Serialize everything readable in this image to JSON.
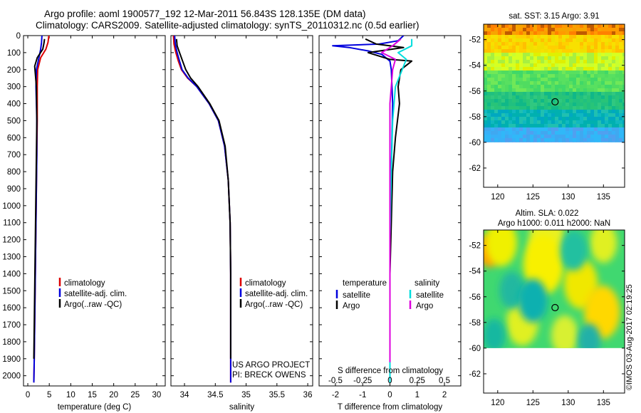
{
  "figure": {
    "title_line1": "Argo profile: aoml 1900577_192 12-Mar-2011 56.843S 128.135E (DM data)",
    "title_line2": "Climatology: CARS2009. Satellite-adjusted climatology: synTS_20110312.nc (0.5d earlier)",
    "credit": "©IMOS 03-Aug-2017 02:19:25"
  },
  "chart_data": [
    {
      "type": "line",
      "name": "temperature-profile",
      "xlabel": "temperature (deg C)",
      "ylabel": "",
      "xlim": [
        -1,
        32
      ],
      "ylim": [
        2060,
        0
      ],
      "xticks": [
        0,
        5,
        10,
        15,
        20,
        25,
        30
      ],
      "yticks": [
        0,
        100,
        200,
        300,
        400,
        500,
        600,
        700,
        800,
        900,
        1000,
        1100,
        1200,
        1300,
        1400,
        1500,
        1600,
        1700,
        1800,
        1900,
        2000
      ],
      "legend": {
        "placement": "lower-right",
        "entries": [
          "climatology",
          "satellite-adj. clim.",
          "Argo(..raw -QC)"
        ]
      },
      "series": [
        {
          "name": "climatology",
          "color": "#dd0000",
          "x": [
            4.9,
            4.7,
            4.2,
            3.0,
            2.3,
            2.2,
            2.2,
            2.1,
            2.0,
            1.9,
            1.8,
            1.7,
            1.6,
            1.5,
            1.4
          ],
          "y": [
            0,
            40,
            80,
            130,
            200,
            300,
            500,
            700,
            900,
            1100,
            1300,
            1500,
            1700,
            1900,
            2040
          ]
        },
        {
          "name": "satellite-adj. clim.",
          "color": "#0000dd",
          "x": [
            3.3,
            3.2,
            3.0,
            2.6,
            2.0,
            1.9,
            2.1,
            2.1,
            2.0,
            1.9,
            1.8,
            1.7,
            1.6,
            1.5,
            1.4
          ],
          "y": [
            0,
            40,
            80,
            130,
            200,
            300,
            500,
            700,
            900,
            1100,
            1300,
            1500,
            1700,
            1900,
            2040
          ]
        },
        {
          "name": "Argo(..raw -QC)",
          "color": "#000000",
          "x": [
            3.9,
            3.8,
            3.5,
            2.2,
            1.6,
            2.0,
            2.1,
            2.0,
            1.9,
            1.8,
            1.7,
            1.6,
            1.5,
            1.4
          ],
          "y": [
            20,
            40,
            80,
            130,
            180,
            300,
            500,
            700,
            900,
            1100,
            1300,
            1500,
            1700,
            1900
          ]
        }
      ]
    },
    {
      "type": "line",
      "name": "salinity-profile",
      "xlabel": "salinity",
      "xlim": [
        33.78,
        36.08
      ],
      "ylim": [
        2060,
        0
      ],
      "xticks": [
        34,
        34.5,
        35,
        35.5,
        36
      ],
      "legend": {
        "placement": "lower-right",
        "entries": [
          "climatology",
          "satellite-adj. clim.",
          "Argo(..raw -QC)"
        ]
      },
      "annotations": [
        "US ARGO PROJECT",
        "PI: BRECK OWENS"
      ],
      "series": [
        {
          "name": "climatology",
          "color": "#dd0000",
          "x": [
            33.82,
            33.83,
            33.86,
            33.9,
            33.95,
            34.05,
            34.2,
            34.4,
            34.55,
            34.65,
            34.71,
            34.74,
            34.75,
            34.75,
            34.75
          ],
          "y": [
            0,
            50,
            100,
            150,
            200,
            250,
            300,
            400,
            500,
            650,
            850,
            1100,
            1400,
            1800,
            2040
          ]
        },
        {
          "name": "satellite-adj. clim.",
          "color": "#0000dd",
          "x": [
            33.84,
            33.85,
            33.88,
            33.92,
            33.96,
            34.06,
            34.2,
            34.4,
            34.55,
            34.65,
            34.71,
            34.74,
            34.75,
            34.75,
            34.75
          ],
          "y": [
            0,
            50,
            100,
            150,
            200,
            250,
            300,
            400,
            500,
            650,
            850,
            1100,
            1400,
            1800,
            2040
          ]
        },
        {
          "name": "Argo(..raw -QC)",
          "color": "#000000",
          "x": [
            33.87,
            33.88,
            33.92,
            33.97,
            34.02,
            34.1,
            34.22,
            34.41,
            34.56,
            34.66,
            34.71,
            34.74,
            34.75,
            34.75
          ],
          "y": [
            20,
            60,
            100,
            150,
            200,
            250,
            300,
            400,
            500,
            650,
            850,
            1100,
            1400,
            1900
          ]
        }
      ]
    },
    {
      "type": "line",
      "name": "difference-profile",
      "xlabel": "T difference from climatology",
      "xlabel_top": "S difference from climatology",
      "xlim": [
        -2.6,
        2.6
      ],
      "ylim": [
        2060,
        0
      ],
      "xticks": [
        -2,
        -1,
        0,
        1,
        2
      ],
      "sticks": [
        {
          "label": "-0.5",
          "t": -2
        },
        {
          "label": "-0.25",
          "t": -1
        },
        {
          "label": "0",
          "t": 0
        },
        {
          "label": "0.25",
          "t": 1
        },
        {
          "label": "0.5",
          "t": 2
        }
      ],
      "legend": {
        "placement": "lower-left",
        "headers": [
          "temperature",
          "salinity"
        ],
        "entries": [
          "satellite",
          "Argo",
          "satellite",
          "Argo"
        ]
      },
      "series": [
        {
          "name": "temperature satellite",
          "color": "#0000dd",
          "x": [
            0.5,
            0.3,
            -0.4,
            -2.1,
            -1.5,
            -0.8,
            -0.3,
            0.0,
            0.05,
            0.1,
            0.05,
            0.0,
            0.0,
            0.0,
            0.0
          ],
          "y": [
            0,
            30,
            50,
            60,
            70,
            90,
            110,
            150,
            200,
            400,
            800,
            1200,
            1500,
            1800,
            2040
          ]
        },
        {
          "name": "temperature Argo",
          "color": "#000000",
          "x": [
            -0.9,
            -0.5,
            0.5,
            -0.8,
            0.0,
            0.8,
            0.4,
            0.3,
            0.35,
            0.2,
            0.1,
            0.05,
            0.0,
            0.0,
            0.0
          ],
          "y": [
            20,
            50,
            70,
            100,
            140,
            150,
            200,
            300,
            400,
            600,
            800,
            1100,
            1400,
            1700,
            1920
          ]
        },
        {
          "name": "salinity satellite",
          "color": "#00dddd",
          "x": [
            0.8,
            0.8,
            0.3,
            0.6,
            0.5,
            0.2,
            0.1,
            0.05,
            0.0,
            0.0,
            0.0
          ],
          "y": [
            20,
            60,
            100,
            140,
            180,
            300,
            500,
            800,
            1200,
            1600,
            2040
          ]
        },
        {
          "name": "salinity Argo",
          "color": "#dd00dd",
          "x": [
            0.4,
            0.1,
            -0.3,
            0.2,
            0.1,
            0.0,
            0.0,
            0.0,
            0.0
          ],
          "y": [
            20,
            60,
            100,
            140,
            200,
            400,
            800,
            1200,
            1920
          ]
        }
      ]
    },
    {
      "type": "heatmap",
      "name": "sst-map",
      "title": "sat. SST: 3.15  Argo: 3.91",
      "xlim": [
        118,
        138
      ],
      "ylim": [
        -63.5,
        -50.8
      ],
      "xticks": [
        120,
        125,
        130,
        135
      ],
      "yticks": [
        -52,
        -54,
        -56,
        -58,
        -60,
        -62
      ],
      "data_extent_lat": [
        -60,
        -50.8
      ],
      "marker": {
        "lon": 128.135,
        "lat": -56.843
      },
      "color_bands": [
        {
          "lat": -51,
          "colors": [
            "#ff8000",
            "#f8a400",
            "#c05a00",
            "#ff9a00"
          ]
        },
        {
          "lat": -52,
          "colors": [
            "#ffd000",
            "#f8e000",
            "#ffc000",
            "#f0e000"
          ]
        },
        {
          "lat": -53.5,
          "colors": [
            "#d8ff20",
            "#a8f040",
            "#c8ff30",
            "#e0f000"
          ]
        },
        {
          "lat": -55,
          "colors": [
            "#58e060",
            "#40d868",
            "#70e858",
            "#50dc60"
          ]
        },
        {
          "lat": -56.5,
          "colors": [
            "#20c080",
            "#30c880",
            "#10b888",
            "#28c478"
          ]
        },
        {
          "lat": -58,
          "colors": [
            "#00b0b0",
            "#10b8c0",
            "#00a8c0",
            "#20c0b0"
          ]
        },
        {
          "lat": -59.3,
          "colors": [
            "#40a8f0",
            "#30b8f8",
            "#50a0f0",
            "#38b0f8"
          ]
        }
      ]
    },
    {
      "type": "heatmap",
      "name": "sla-map",
      "title_line1": "Altim. SLA: 0.022",
      "title_line2": "Argo h1000: 0.011  h2000: NaN",
      "xlim": [
        118,
        138
      ],
      "ylim": [
        -63.5,
        -50.8
      ],
      "xticks": [
        120,
        125,
        130,
        135
      ],
      "yticks": [
        -52,
        -54,
        -56,
        -58,
        -60,
        -62
      ],
      "data_extent_lat": [
        -60,
        -50.8
      ],
      "marker": {
        "lon": 128.135,
        "lat": -56.843
      },
      "base_color": "#40d870",
      "blobs": [
        {
          "lon": 118.8,
          "lat": -52.4,
          "r": 1.0,
          "color": "#ffa000"
        },
        {
          "lon": 120.5,
          "lat": -51.8,
          "r": 1.4,
          "color": "#f0f000"
        },
        {
          "lon": 127.0,
          "lat": -51.6,
          "r": 1.6,
          "color": "#e8f020"
        },
        {
          "lon": 135.0,
          "lat": -51.8,
          "r": 1.2,
          "color": "#e0f020"
        },
        {
          "lon": 126.5,
          "lat": -53.5,
          "r": 1.8,
          "color": "#f8f000"
        },
        {
          "lon": 131.8,
          "lat": -55.0,
          "r": 1.5,
          "color": "#f0e800"
        },
        {
          "lon": 123.5,
          "lat": -58.0,
          "r": 1.4,
          "color": "#e0f020"
        },
        {
          "lon": 134.8,
          "lat": -57.2,
          "r": 1.6,
          "color": "#ffd800"
        },
        {
          "lon": 129.5,
          "lat": -59.0,
          "r": 1.2,
          "color": "#d8f030"
        },
        {
          "lon": 122.0,
          "lat": -55.5,
          "r": 1.1,
          "color": "#20b8a0"
        },
        {
          "lon": 130.8,
          "lat": -52.4,
          "r": 1.2,
          "color": "#20c0a0"
        },
        {
          "lon": 125.0,
          "lat": -56.3,
          "r": 1.3,
          "color": "#10b0b0"
        },
        {
          "lon": 133.0,
          "lat": -59.4,
          "r": 1.0,
          "color": "#20b0a8"
        },
        {
          "lon": 119.5,
          "lat": -59.0,
          "r": 1.0,
          "color": "#18b8a0"
        }
      ]
    }
  ]
}
